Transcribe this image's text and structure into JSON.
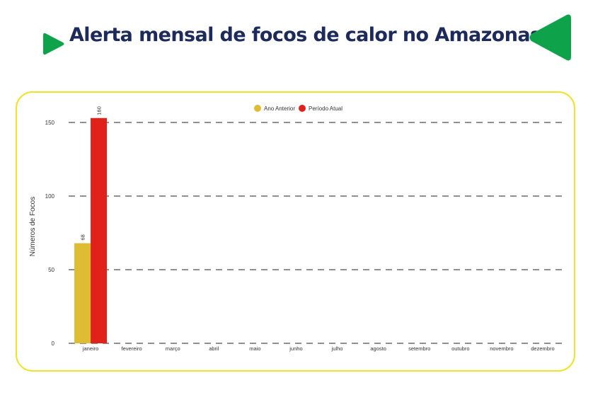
{
  "header": {
    "title": "Alerta mensal de focos de calor no Amazonas"
  },
  "colors": {
    "title": "#1d2a5c",
    "accent_green": "#0ea34a",
    "frame_yellow": "#f2e12a",
    "previous_year": "#dfbd32",
    "current_period": "#e0221b"
  },
  "decor": {
    "left_icon": "green-play-triangle-icon",
    "right_icon": "green-rounded-triangle-icon"
  },
  "chart_data": {
    "type": "bar",
    "title": "",
    "xlabel": "",
    "ylabel": "Números de Focos",
    "ylim": [
      0,
      150
    ],
    "yticks": [
      0,
      50,
      100,
      150
    ],
    "grid": "horizontal-dashed",
    "legend_position": "top-center",
    "categories": [
      "janeiro",
      "fevereiro",
      "março",
      "abril",
      "maio",
      "junho",
      "julho",
      "agosto",
      "setembro",
      "outubro",
      "novembro",
      "dezembro"
    ],
    "series": [
      {
        "name": "Ano Anterior",
        "color": "#dfbd32",
        "values": [
          68,
          null,
          null,
          null,
          null,
          null,
          null,
          null,
          null,
          null,
          null,
          null
        ],
        "labels": [
          "68",
          "",
          "",
          "",
          "",
          "",
          "",
          "",
          "",
          "",
          "",
          ""
        ]
      },
      {
        "name": "Período Atual",
        "color": "#e0221b",
        "values": [
          160,
          null,
          null,
          null,
          null,
          null,
          null,
          null,
          null,
          null,
          null,
          null
        ],
        "labels": [
          "160",
          "",
          "",
          "",
          "",
          "",
          "",
          "",
          "",
          "",
          "",
          ""
        ]
      }
    ]
  }
}
